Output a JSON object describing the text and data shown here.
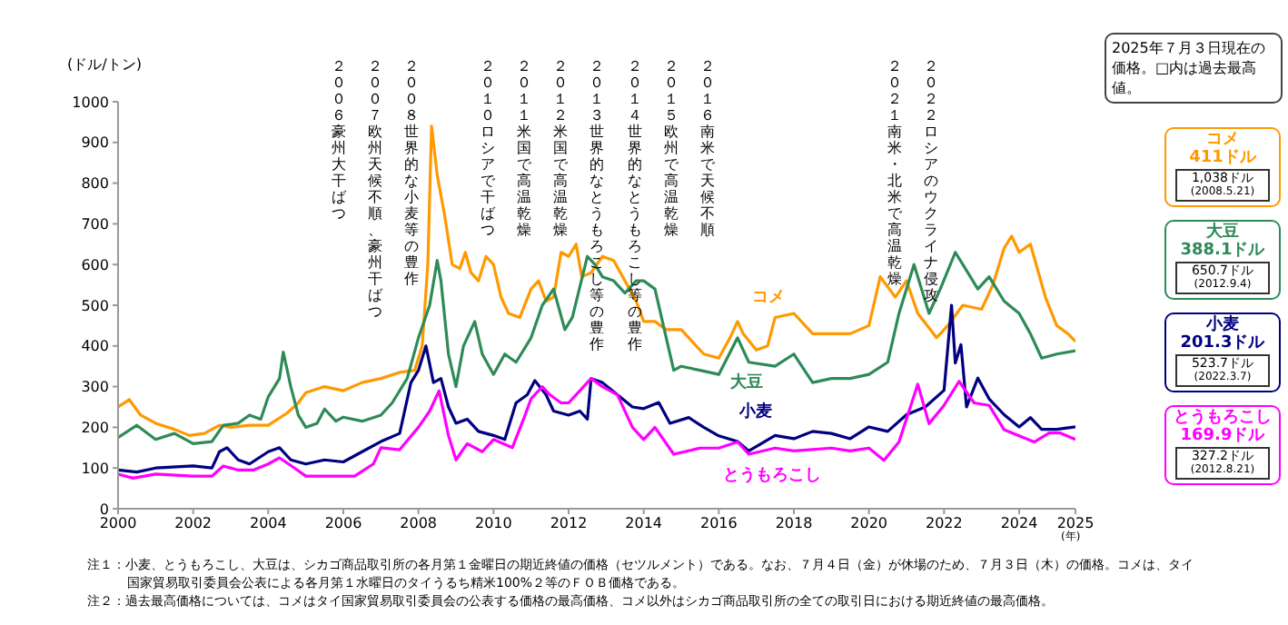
{
  "chart_data": {
    "type": "line",
    "ylabel": "(ドル/トン)",
    "xlabel": "(年)",
    "xlim": [
      2000,
      2025.5
    ],
    "xticks": [
      2000,
      2002,
      2004,
      2006,
      2008,
      2010,
      2012,
      2014,
      2016,
      2018,
      2020,
      2022,
      2024,
      {
        "value": 2025.5,
        "label": "2025"
      }
    ],
    "ylim": [
      0,
      1000
    ],
    "yticks": [
      0,
      100,
      200,
      300,
      400,
      500,
      600,
      700,
      800,
      900,
      1000
    ],
    "grid": false,
    "legend": false,
    "marker": "none",
    "line_style": "solid",
    "series": [
      {
        "name": "コメ",
        "color": "#ff9900",
        "x": [
          2000,
          2000.3,
          2000.6,
          2001,
          2001.5,
          2001.9,
          2002.3,
          2002.7,
          2003,
          2003.5,
          2004,
          2004.5,
          2004.8,
          2005,
          2005.5,
          2006,
          2006.5,
          2007,
          2007.5,
          2007.9,
          2008.1,
          2008.25,
          2008.35,
          2008.5,
          2008.7,
          2008.9,
          2009.1,
          2009.25,
          2009.4,
          2009.6,
          2009.8,
          2010,
          2010.2,
          2010.4,
          2010.7,
          2011,
          2011.2,
          2011.4,
          2011.6,
          2011.8,
          2012,
          2012.2,
          2012.35,
          2012.6,
          2012.9,
          2013.2,
          2013.5,
          2013.8,
          2014,
          2014.3,
          2014.6,
          2015,
          2015.3,
          2015.6,
          2016,
          2016.3,
          2016.5,
          2016.65,
          2017,
          2017.3,
          2017.5,
          2018,
          2018.5,
          2019,
          2019.5,
          2020,
          2020.3,
          2020.7,
          2021,
          2021.3,
          2021.8,
          2022.1,
          2022.5,
          2023,
          2023.3,
          2023.6,
          2023.8,
          2024,
          2024.3,
          2024.7,
          2025,
          2025.3,
          2025.5
        ],
        "values": [
          250,
          268,
          230,
          210,
          195,
          180,
          185,
          205,
          200,
          205,
          205,
          235,
          260,
          285,
          300,
          290,
          310,
          320,
          335,
          340,
          400,
          600,
          940,
          820,
          720,
          600,
          590,
          630,
          580,
          560,
          620,
          600,
          520,
          480,
          470,
          540,
          560,
          510,
          520,
          630,
          620,
          650,
          570,
          580,
          620,
          610,
          560,
          510,
          460,
          460,
          440,
          440,
          410,
          380,
          370,
          420,
          460,
          430,
          390,
          400,
          470,
          480,
          430,
          430,
          430,
          450,
          570,
          520,
          560,
          480,
          420,
          450,
          500,
          490,
          550,
          640,
          670,
          630,
          650,
          520,
          450,
          430,
          411
        ]
      },
      {
        "name": "大豆",
        "color": "#2e8b57",
        "x": [
          2000,
          2000.5,
          2001,
          2001.5,
          2002,
          2002.5,
          2002.8,
          2003.2,
          2003.5,
          2003.8,
          2004,
          2004.3,
          2004.4,
          2004.6,
          2004.8,
          2005,
          2005.3,
          2005.5,
          2005.8,
          2006,
          2006.5,
          2007,
          2007.3,
          2007.7,
          2008,
          2008.3,
          2008.5,
          2008.6,
          2008.8,
          2009,
          2009.2,
          2009.5,
          2009.7,
          2010,
          2010.3,
          2010.6,
          2011,
          2011.3,
          2011.6,
          2011.9,
          2012.1,
          2012.5,
          2012.7,
          2012.9,
          2013.2,
          2013.5,
          2013.8,
          2014,
          2014.3,
          2014.8,
          2015,
          2015.5,
          2016,
          2016.5,
          2016.8,
          2017.5,
          2018,
          2018.5,
          2019,
          2019.5,
          2020,
          2020.5,
          2020.8,
          2021.2,
          2021.6,
          2021.9,
          2022.3,
          2022.5,
          2022.9,
          2023.2,
          2023.6,
          2024,
          2024.3,
          2024.6,
          2025,
          2025.5
        ],
        "values": [
          175,
          205,
          170,
          185,
          160,
          165,
          205,
          210,
          230,
          220,
          275,
          320,
          385,
          300,
          230,
          200,
          210,
          245,
          215,
          225,
          215,
          230,
          260,
          320,
          420,
          500,
          610,
          560,
          380,
          300,
          400,
          460,
          380,
          330,
          380,
          360,
          420,
          500,
          540,
          440,
          470,
          620,
          600,
          570,
          560,
          530,
          560,
          560,
          540,
          340,
          350,
          340,
          330,
          420,
          360,
          350,
          380,
          310,
          320,
          320,
          330,
          360,
          480,
          600,
          480,
          540,
          630,
          600,
          540,
          570,
          510,
          480,
          430,
          370,
          380,
          388
        ]
      },
      {
        "name": "小麦",
        "color": "#000080",
        "x": [
          2000,
          2000.5,
          2001,
          2002,
          2002.5,
          2002.7,
          2002.9,
          2003.2,
          2003.5,
          2004,
          2004.3,
          2004.6,
          2005,
          2005.5,
          2006,
          2006.5,
          2007,
          2007.5,
          2007.8,
          2008,
          2008.2,
          2008.4,
          2008.6,
          2008.8,
          2009,
          2009.3,
          2009.6,
          2010,
          2010.3,
          2010.6,
          2010.9,
          2011.1,
          2011.4,
          2011.6,
          2012,
          2012.3,
          2012.5,
          2012.6,
          2012.9,
          2013.3,
          2013.7,
          2014,
          2014.4,
          2014.7,
          2015.2,
          2015.6,
          2016,
          2016.5,
          2016.8,
          2017.5,
          2018,
          2018.5,
          2019,
          2019.5,
          2020,
          2020.5,
          2021,
          2021.5,
          2022,
          2022.2,
          2022.3,
          2022.45,
          2022.6,
          2022.9,
          2023.2,
          2023.6,
          2024,
          2024.3,
          2024.6,
          2025,
          2025.5
        ],
        "values": [
          95,
          90,
          100,
          105,
          100,
          140,
          150,
          120,
          110,
          140,
          150,
          120,
          110,
          120,
          115,
          140,
          165,
          185,
          310,
          340,
          400,
          310,
          320,
          250,
          210,
          220,
          190,
          180,
          170,
          260,
          280,
          315,
          280,
          240,
          230,
          240,
          220,
          320,
          310,
          280,
          250,
          246,
          261,
          210,
          224,
          200,
          179,
          165,
          142,
          180,
          172,
          190,
          185,
          172,
          201,
          190,
          231,
          250,
          291,
          500,
          358,
          403,
          250,
          321,
          270,
          231,
          201,
          224,
          195,
          195,
          201
        ]
      },
      {
        "name": "とうもろこし",
        "color": "#ff00ff",
        "x": [
          2000,
          2000.4,
          2001,
          2002,
          2002.5,
          2002.8,
          2003.2,
          2003.6,
          2004,
          2004.3,
          2004.7,
          2005,
          2006,
          2006.3,
          2006.8,
          2007,
          2007.5,
          2008,
          2008.3,
          2008.55,
          2008.8,
          2009,
          2009.3,
          2009.7,
          2010,
          2010.5,
          2010.8,
          2011,
          2011.3,
          2011.5,
          2011.8,
          2012,
          2012.6,
          2012.9,
          2013.3,
          2013.7,
          2014,
          2014.3,
          2014.8,
          2015.5,
          2016,
          2016.5,
          2016.8,
          2017.5,
          2018,
          2019,
          2019.5,
          2020,
          2020.4,
          2020.8,
          2021.3,
          2021.6,
          2022,
          2022.4,
          2022.8,
          2023.2,
          2023.6,
          2024,
          2024.4,
          2024.8,
          2025.1,
          2025.5
        ],
        "values": [
          85,
          75,
          85,
          80,
          80,
          105,
          95,
          95,
          110,
          125,
          100,
          80,
          80,
          80,
          110,
          150,
          145,
          200,
          240,
          290,
          180,
          120,
          160,
          140,
          170,
          150,
          220,
          270,
          300,
          280,
          260,
          260,
          320,
          300,
          280,
          200,
          170,
          200,
          134,
          149,
          149,
          164,
          134,
          149,
          142,
          149,
          142,
          149,
          119,
          164,
          306,
          209,
          254,
          313,
          260,
          254,
          194,
          179,
          164,
          186,
          186,
          170
        ]
      }
    ],
    "annotations": [
      "２００６豪州大干ばつ",
      "２００７欧州天候不順、豪州干ばつ",
      "２００８世界的な小麦等の豊作",
      "２０１０ロシアで干ばつ",
      "２０１１米国で高温乾燥",
      "２０１２米国で高温乾燥",
      "２０１３世界的なとうもろこし等の豊作",
      "２０１４世界的なとうもろこし等の豊作",
      "２０１５欧州で高温乾燥",
      "２０１６南米で天候不順",
      "２０２１南米・北米で高温乾燥",
      "２０２２ロシアのウクライナ侵攻",
      "2025年７月３日現在の価格。□内は過去最高値。",
      "411ドル",
      "1,038ドル",
      "(2008.5.21)",
      "388.1ドル",
      "650.7ドル",
      "(2012.9.4)",
      "201.3ドル",
      "523.7ドル",
      "(2022.3.7)",
      "169.9ドル",
      "327.2ドル",
      "(2012.8.21)",
      "注１：小麦、とうもろこし、大豆は、シカゴ商品取引所の各月第１金曜日の期近終値の価格（セツルメント）である。なお、７月４日（金）が休場のため、７月３日（木）の価格。コメは、タイ国家貿易取引委員会公表による各月第１水曜日のタイうるち精米100%２等のＦＯＢ価格である。",
      "注２：過去最高価格については、コメはタイ国家貿易取引委員会の公表する価格の最高価格、コメ以外はシカゴ商品取引所の全ての取引日における期近終値の最高価格。"
    ]
  }
}
